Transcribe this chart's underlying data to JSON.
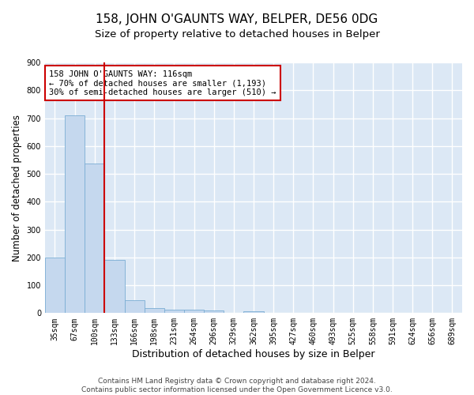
{
  "title": "158, JOHN O'GAUNTS WAY, BELPER, DE56 0DG",
  "subtitle": "Size of property relative to detached houses in Belper",
  "xlabel": "Distribution of detached houses by size in Belper",
  "ylabel": "Number of detached properties",
  "bar_values": [
    200,
    711,
    538,
    191,
    46,
    18,
    12,
    11,
    9,
    0,
    8,
    0,
    0,
    0,
    0,
    0,
    0,
    0,
    0,
    0,
    0
  ],
  "bar_labels": [
    "35sqm",
    "67sqm",
    "100sqm",
    "133sqm",
    "166sqm",
    "198sqm",
    "231sqm",
    "264sqm",
    "296sqm",
    "329sqm",
    "362sqm",
    "395sqm",
    "427sqm",
    "460sqm",
    "493sqm",
    "525sqm",
    "558sqm",
    "591sqm",
    "624sqm",
    "656sqm",
    "689sqm"
  ],
  "bar_color": "#c5d8ee",
  "bar_edge_color": "#7aadd4",
  "background_color": "#dce8f5",
  "grid_color": "#ffffff",
  "annotation_text_line1": "158 JOHN O'GAUNTS WAY: 116sqm",
  "annotation_text_line2": "← 70% of detached houses are smaller (1,193)",
  "annotation_text_line3": "30% of semi-detached houses are larger (510) →",
  "annotation_box_facecolor": "#ffffff",
  "annotation_box_edgecolor": "#cc0000",
  "red_line_x": 2.5,
  "ylim": [
    0,
    900
  ],
  "yticks": [
    0,
    100,
    200,
    300,
    400,
    500,
    600,
    700,
    800,
    900
  ],
  "footer_text": "Contains HM Land Registry data © Crown copyright and database right 2024.\nContains public sector information licensed under the Open Government Licence v3.0.",
  "title_fontsize": 11,
  "subtitle_fontsize": 9.5,
  "xlabel_fontsize": 9,
  "ylabel_fontsize": 8.5,
  "tick_fontsize": 7,
  "annotation_fontsize": 7.5,
  "footer_fontsize": 6.5
}
